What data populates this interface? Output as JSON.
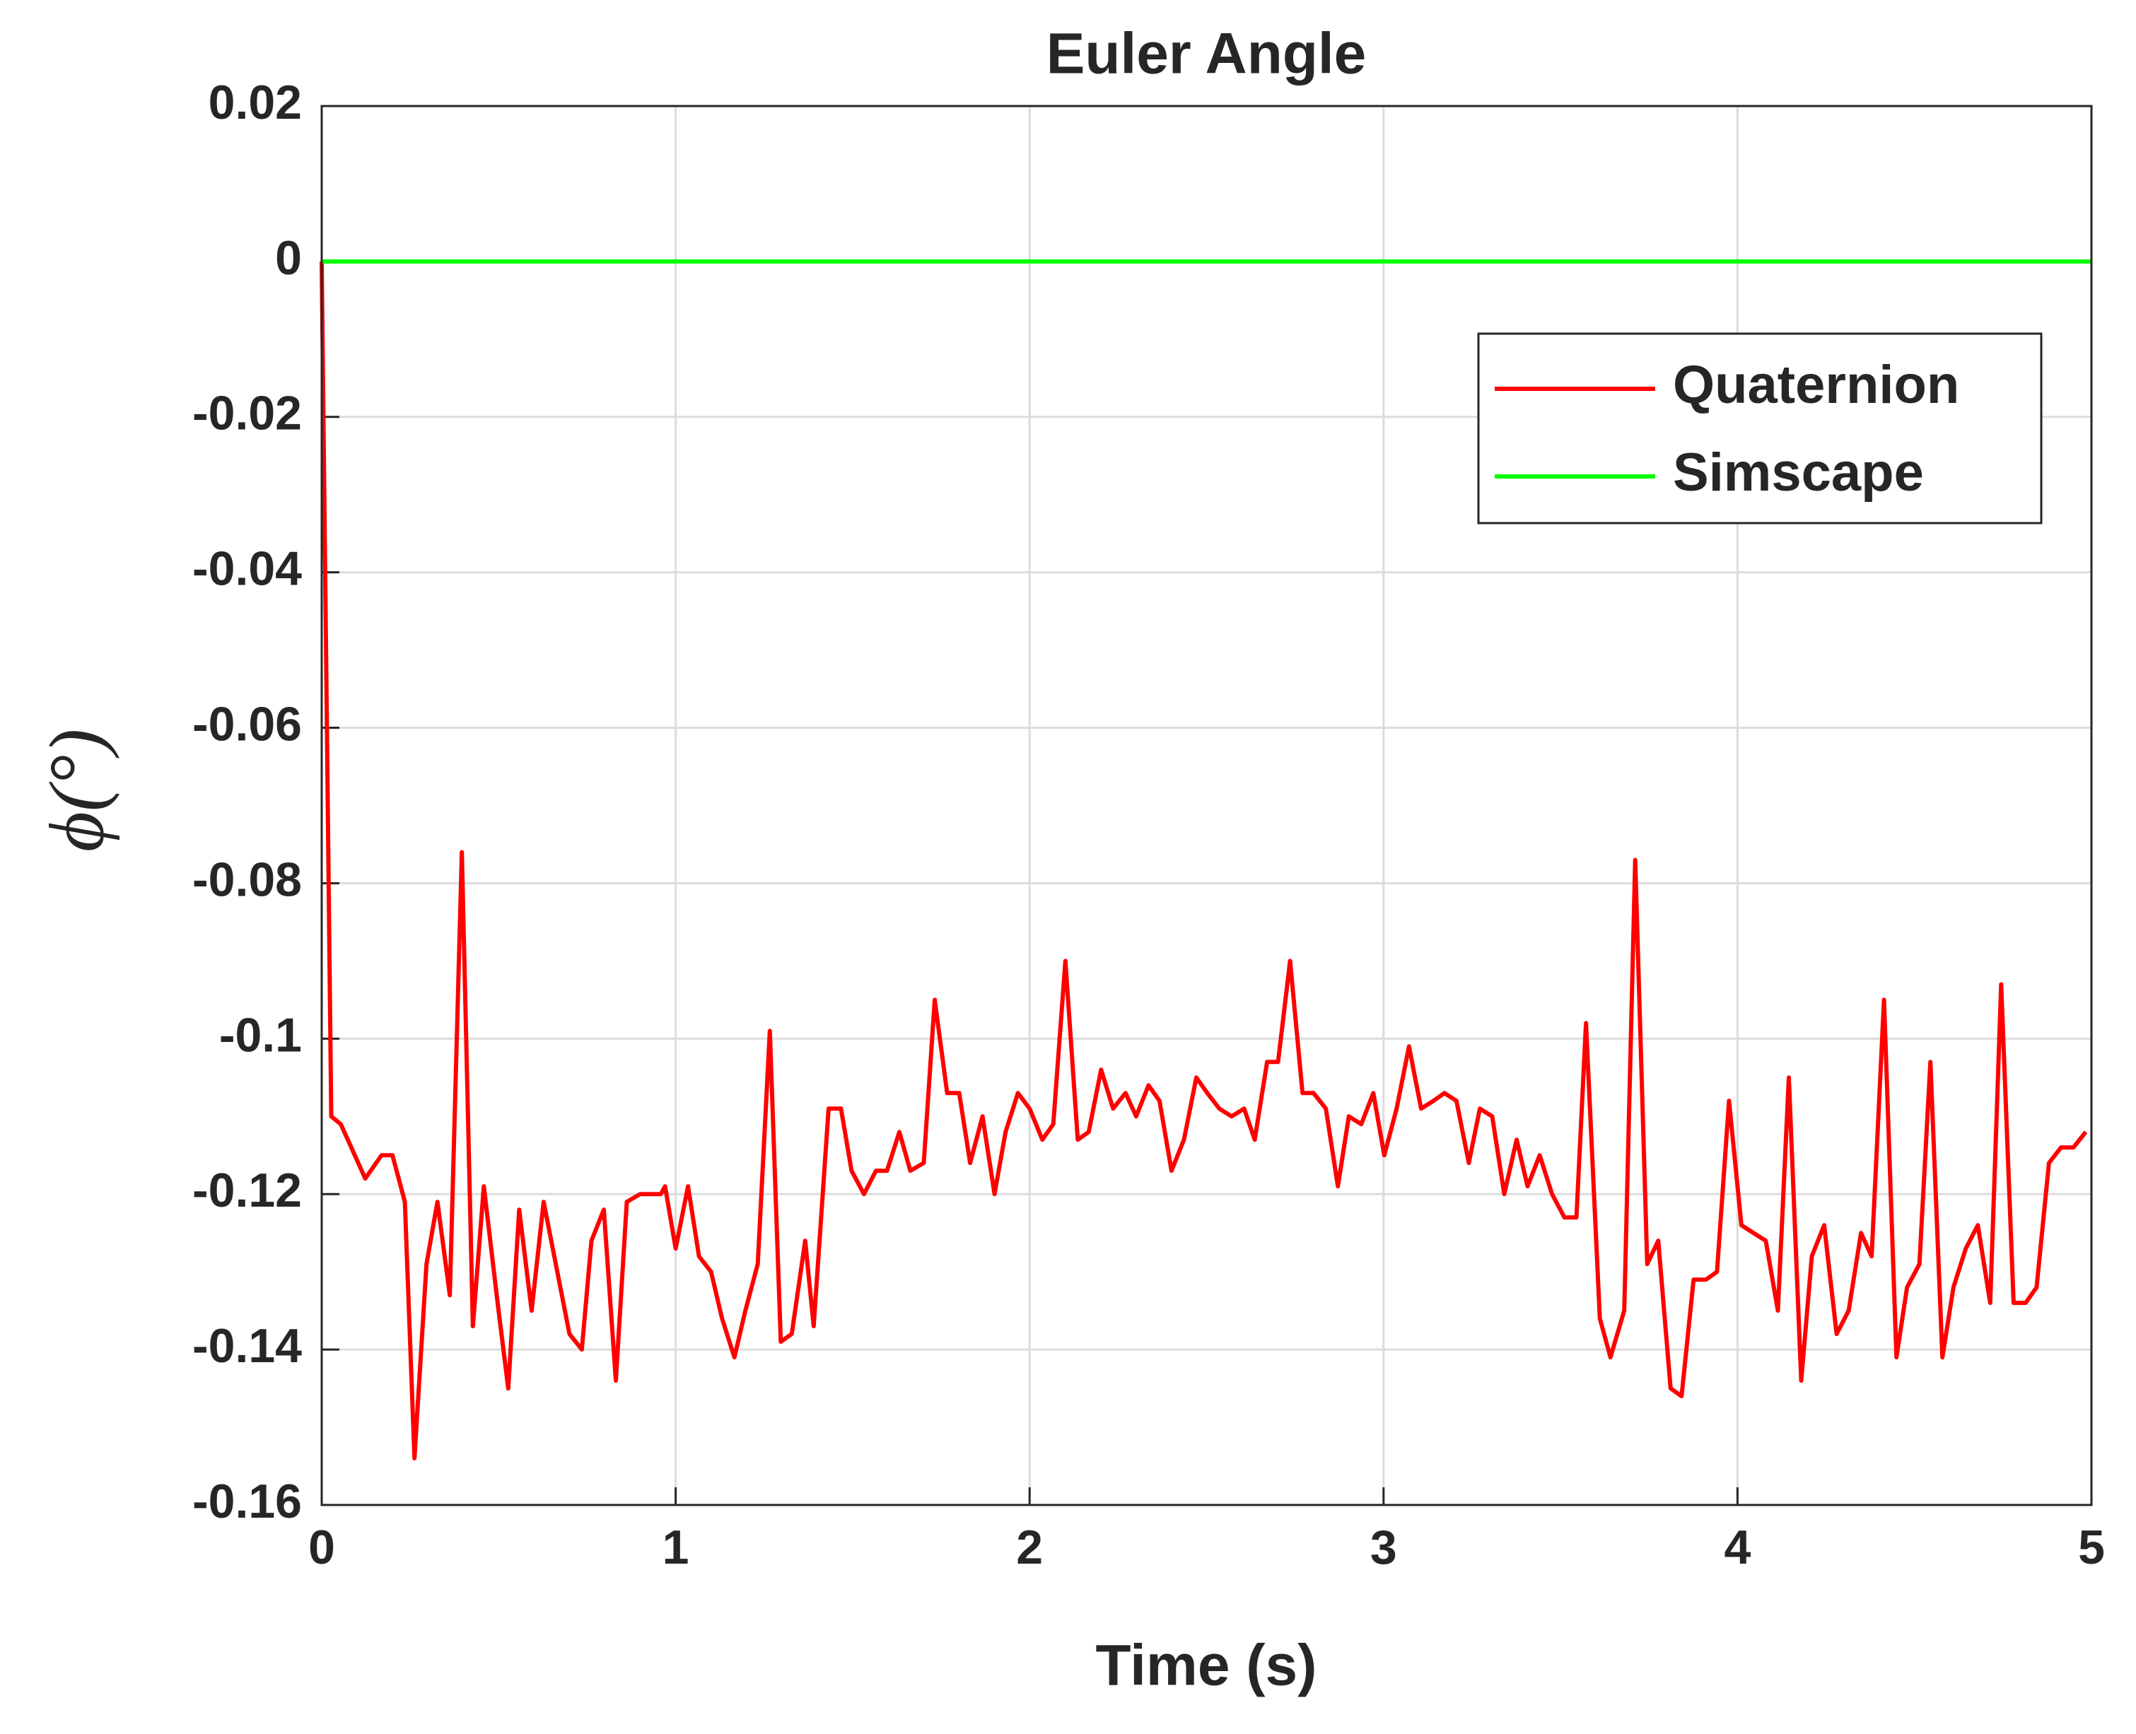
{
  "chart_data": {
    "type": "line",
    "title": "Euler Angle",
    "xlabel": "Time (s)",
    "ylabel": "ϕ(°)",
    "xlim": [
      0,
      5
    ],
    "ylim": [
      -0.16,
      0.02
    ],
    "xticks": [
      0,
      1,
      2,
      3,
      4,
      5
    ],
    "yticks": [
      0.02,
      0,
      -0.02,
      -0.04,
      -0.06,
      -0.08,
      -0.1,
      -0.12,
      -0.14,
      -0.16
    ],
    "grid": true,
    "legend": "upper right",
    "series": [
      {
        "name": "Quaternion",
        "color": "#ff0000",
        "x": [
          0,
          0.027,
          0.054,
          0.123,
          0.169,
          0.2,
          0.235,
          0.262,
          0.296,
          0.327,
          0.362,
          0.396,
          0.427,
          0.458,
          0.497,
          0.527,
          0.558,
          0.593,
          0.627,
          0.7,
          0.735,
          0.762,
          0.797,
          0.831,
          0.862,
          0.9,
          0.958,
          0.97,
          1.0,
          1.035,
          1.066,
          1.1,
          1.131,
          1.166,
          1.197,
          1.232,
          1.266,
          1.297,
          1.328,
          1.366,
          1.39,
          1.432,
          1.467,
          1.497,
          1.532,
          1.566,
          1.597,
          1.632,
          1.663,
          1.701,
          1.732,
          1.767,
          1.801,
          1.832,
          1.867,
          1.901,
          1.932,
          1.967,
          2.0,
          2.036,
          2.067,
          2.101,
          2.136,
          2.167,
          2.202,
          2.236,
          2.271,
          2.301,
          2.336,
          2.367,
          2.401,
          2.436,
          2.471,
          2.502,
          2.536,
          2.571,
          2.606,
          2.636,
          2.671,
          2.702,
          2.736,
          2.771,
          2.802,
          2.837,
          2.871,
          2.902,
          2.937,
          2.971,
          3.002,
          3.037,
          3.072,
          3.106,
          3.141,
          3.172,
          3.206,
          3.241,
          3.272,
          3.307,
          3.341,
          3.376,
          3.407,
          3.441,
          3.476,
          3.511,
          3.545,
          3.572,
          3.611,
          3.641,
          3.68,
          3.711,
          3.745,
          3.776,
          3.811,
          3.842,
          3.876,
          3.911,
          3.942,
          3.976,
          4.011,
          4.045,
          4.08,
          4.114,
          4.145,
          4.18,
          4.21,
          4.245,
          4.28,
          4.314,
          4.349,
          4.379,
          4.414,
          4.449,
          4.479,
          4.514,
          4.545,
          4.579,
          4.61,
          4.645,
          4.679,
          4.714,
          4.745,
          4.78,
          4.814,
          4.845,
          4.88,
          4.914,
          4.949,
          4.984
        ],
        "values": [
          0,
          -0.11,
          -0.111,
          -0.118,
          -0.115,
          -0.115,
          -0.121,
          -0.154,
          -0.129,
          -0.121,
          -0.133,
          -0.076,
          -0.137,
          -0.119,
          -0.134,
          -0.145,
          -0.122,
          -0.135,
          -0.121,
          -0.138,
          -0.14,
          -0.126,
          -0.122,
          -0.144,
          -0.121,
          -0.12,
          -0.12,
          -0.119,
          -0.127,
          -0.119,
          -0.128,
          -0.13,
          -0.136,
          -0.141,
          -0.135,
          -0.129,
          -0.099,
          -0.139,
          -0.138,
          -0.126,
          -0.137,
          -0.109,
          -0.109,
          -0.117,
          -0.12,
          -0.117,
          -0.117,
          -0.112,
          -0.117,
          -0.116,
          -0.095,
          -0.107,
          -0.107,
          -0.116,
          -0.11,
          -0.12,
          -0.112,
          -0.107,
          -0.109,
          -0.113,
          -0.111,
          -0.09,
          -0.113,
          -0.112,
          -0.104,
          -0.109,
          -0.107,
          -0.11,
          -0.106,
          -0.108,
          -0.117,
          -0.113,
          -0.105,
          -0.107,
          -0.109,
          -0.11,
          -0.109,
          -0.113,
          -0.103,
          -0.103,
          -0.09,
          -0.107,
          -0.107,
          -0.109,
          -0.119,
          -0.11,
          -0.111,
          -0.107,
          -0.115,
          -0.109,
          -0.101,
          -0.109,
          -0.108,
          -0.107,
          -0.108,
          -0.116,
          -0.109,
          -0.11,
          -0.12,
          -0.113,
          -0.119,
          -0.115,
          -0.12,
          -0.123,
          -0.123,
          -0.098,
          -0.136,
          -0.141,
          -0.135,
          -0.077,
          -0.129,
          -0.126,
          -0.145,
          -0.146,
          -0.131,
          -0.131,
          -0.13,
          -0.108,
          -0.124,
          -0.125,
          -0.126,
          -0.135,
          -0.105,
          -0.144,
          -0.128,
          -0.124,
          -0.138,
          -0.135,
          -0.125,
          -0.128,
          -0.095,
          -0.141,
          -0.132,
          -0.129,
          -0.103,
          -0.141,
          -0.132,
          -0.127,
          -0.124,
          -0.134,
          -0.093,
          -0.134,
          -0.134,
          -0.132,
          -0.116,
          -0.114,
          -0.114,
          -0.112
        ]
      },
      {
        "name": "Simscape",
        "color": "#00ff00",
        "x": [
          0,
          5
        ],
        "values": [
          0,
          0
        ]
      }
    ]
  }
}
